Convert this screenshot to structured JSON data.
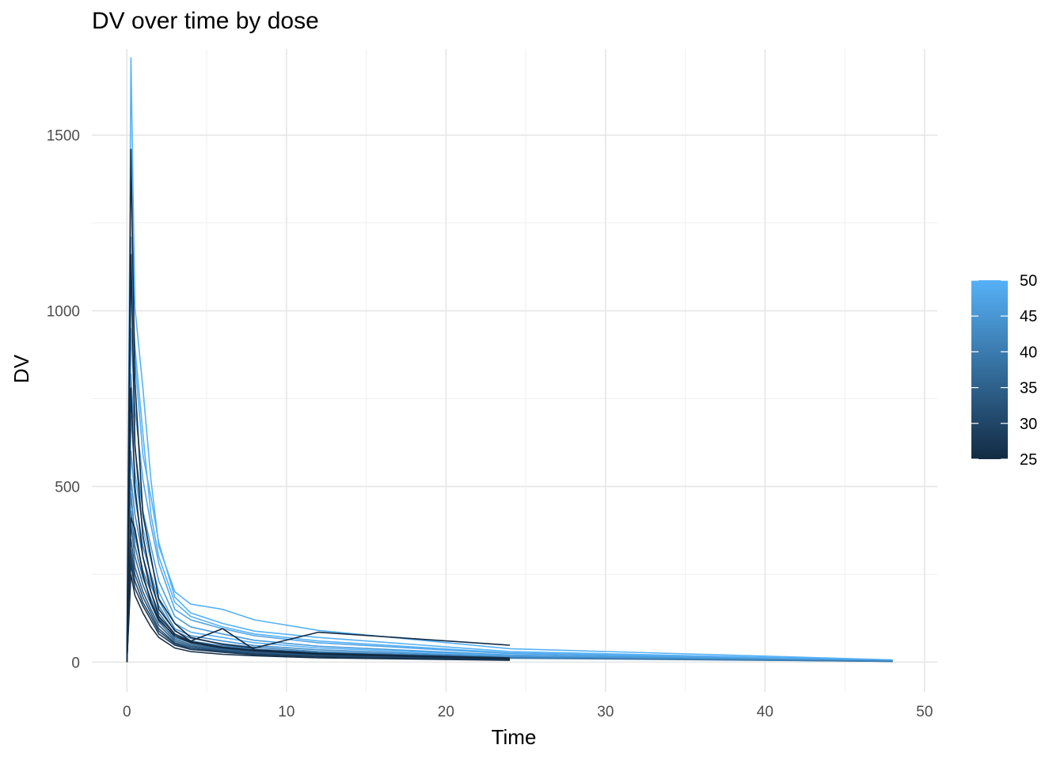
{
  "chart_data": {
    "type": "line",
    "title": "DV over time by dose",
    "xlabel": "Time",
    "ylabel": "DV",
    "xlim": [
      -2.2,
      50.8
    ],
    "ylim": [
      -85,
      1745
    ],
    "x_ticks": [
      0,
      10,
      20,
      30,
      40,
      50
    ],
    "y_ticks": [
      0,
      500,
      1000,
      1500
    ],
    "grid": true,
    "legend": {
      "placement": "right",
      "type": "colorbar",
      "range": [
        25,
        50
      ],
      "ticks": [
        25,
        30,
        35,
        40,
        45,
        50
      ],
      "color_low": "#132B43",
      "color_high": "#56B1F7"
    },
    "series": [
      {
        "dose": 50,
        "x": [
          0,
          0.25,
          0.5,
          1,
          1.5,
          2,
          3,
          4,
          6,
          8,
          12,
          24,
          48
        ],
        "y": [
          0,
          1720,
          1010,
          780,
          520,
          330,
          200,
          165,
          150,
          120,
          90,
          38,
          6
        ]
      },
      {
        "dose": 50,
        "x": [
          0,
          0.25,
          0.5,
          1,
          1.5,
          2,
          3,
          4,
          6,
          8,
          12,
          24,
          48
        ],
        "y": [
          0,
          1210,
          860,
          590,
          470,
          340,
          185,
          140,
          110,
          88,
          70,
          30,
          5
        ]
      },
      {
        "dose": 48,
        "x": [
          0,
          0.25,
          0.5,
          1,
          1.5,
          2,
          3,
          4,
          6,
          8,
          12,
          24,
          48
        ],
        "y": [
          0,
          950,
          720,
          520,
          390,
          280,
          150,
          120,
          95,
          75,
          55,
          24,
          4
        ]
      },
      {
        "dose": 46,
        "x": [
          0,
          0.25,
          0.5,
          1,
          1.5,
          2,
          3,
          4,
          6,
          8,
          12,
          24,
          48
        ],
        "y": [
          0,
          820,
          610,
          430,
          330,
          230,
          130,
          100,
          80,
          62,
          45,
          20,
          3
        ]
      },
      {
        "dose": 50,
        "x": [
          0,
          0.25,
          0.5,
          1,
          1.5,
          2,
          3,
          4,
          6,
          8,
          12,
          24,
          48
        ],
        "y": [
          0,
          700,
          540,
          380,
          290,
          200,
          110,
          85,
          70,
          55,
          40,
          18,
          3
        ]
      },
      {
        "dose": 44,
        "x": [
          0,
          0.25,
          0.5,
          1,
          1.5,
          2,
          3,
          4,
          6,
          8,
          12,
          24,
          48
        ],
        "y": [
          0,
          600,
          470,
          330,
          250,
          175,
          95,
          75,
          60,
          47,
          35,
          15,
          2
        ]
      },
      {
        "dose": 42,
        "x": [
          0,
          0.25,
          0.5,
          1,
          1.5,
          2,
          3,
          4,
          6,
          8,
          12,
          24,
          48
        ],
        "y": [
          0,
          520,
          420,
          300,
          220,
          160,
          88,
          68,
          52,
          42,
          30,
          13,
          2
        ]
      },
      {
        "dose": 40,
        "x": [
          0,
          0.25,
          0.5,
          1,
          1.5,
          2,
          3,
          4,
          6,
          8,
          12,
          24,
          48
        ],
        "y": [
          0,
          480,
          360,
          260,
          200,
          140,
          80,
          60,
          46,
          37,
          27,
          11,
          2
        ]
      },
      {
        "dose": 38,
        "x": [
          0,
          0.25,
          0.5,
          1,
          1.5,
          2,
          3,
          4,
          6,
          8,
          12,
          24
        ],
        "y": [
          0,
          430,
          330,
          240,
          180,
          125,
          70,
          55,
          42,
          33,
          24,
          10
        ]
      },
      {
        "dose": 36,
        "x": [
          0,
          0.25,
          0.5,
          1,
          1.5,
          2,
          3,
          4,
          6,
          8,
          12,
          24
        ],
        "y": [
          0,
          390,
          300,
          220,
          165,
          115,
          65,
          50,
          38,
          30,
          22,
          9
        ]
      },
      {
        "dose": 34,
        "x": [
          0,
          0.25,
          0.5,
          1,
          1.5,
          2,
          3,
          4,
          6,
          8,
          12,
          24
        ],
        "y": [
          0,
          350,
          270,
          200,
          150,
          105,
          60,
          46,
          35,
          28,
          20,
          8
        ]
      },
      {
        "dose": 32,
        "x": [
          0,
          0.25,
          0.5,
          1,
          1.5,
          2,
          3,
          4,
          6,
          8,
          12,
          24
        ],
        "y": [
          0,
          320,
          250,
          185,
          140,
          95,
          55,
          42,
          32,
          25,
          18,
          7
        ]
      },
      {
        "dose": 30,
        "x": [
          0,
          0.25,
          0.5,
          1,
          1.5,
          2,
          3,
          4,
          6,
          8,
          12,
          24
        ],
        "y": [
          0,
          300,
          230,
          170,
          130,
          88,
          52,
          38,
          30,
          23,
          16,
          6
        ]
      },
      {
        "dose": 28,
        "x": [
          0,
          0.25,
          0.5,
          1,
          1.5,
          2,
          3,
          4,
          6,
          8,
          12,
          24
        ],
        "y": [
          0,
          280,
          210,
          160,
          120,
          80,
          48,
          36,
          28,
          21,
          15,
          6
        ]
      },
      {
        "dose": 25,
        "x": [
          0,
          0.25,
          0.5,
          1,
          1.5,
          2,
          3,
          4,
          6,
          8,
          12,
          24
        ],
        "y": [
          0,
          1460,
          800,
          420,
          300,
          180,
          110,
          70,
          50,
          40,
          85,
          48
        ]
      },
      {
        "dose": 25,
        "x": [
          0,
          0.25,
          0.5,
          1,
          1.5,
          2,
          3,
          4,
          6,
          8,
          12,
          24
        ],
        "y": [
          0,
          1160,
          620,
          360,
          240,
          150,
          90,
          60,
          95,
          35,
          25,
          12
        ]
      },
      {
        "dose": 25,
        "x": [
          0,
          0.25,
          0.5,
          1,
          1.5,
          2,
          3,
          4,
          6,
          8,
          12,
          24
        ],
        "y": [
          0,
          410,
          380,
          250,
          170,
          120,
          75,
          55,
          40,
          32,
          22,
          9
        ]
      },
      {
        "dose": 25,
        "x": [
          0,
          0.25,
          0.5,
          1,
          1.5,
          2,
          3,
          4,
          6,
          8,
          12,
          24
        ],
        "y": [
          0,
          780,
          500,
          300,
          200,
          130,
          80,
          58,
          42,
          34,
          24,
          10
        ]
      },
      {
        "dose": 26,
        "x": [
          0,
          0.25,
          0.5,
          1,
          1.5,
          2,
          3,
          4,
          6,
          8,
          12,
          24
        ],
        "y": [
          0,
          250,
          190,
          140,
          100,
          70,
          40,
          30,
          22,
          18,
          12,
          5
        ]
      },
      {
        "dose": 50,
        "x": [
          0,
          0.25,
          0.5,
          1,
          1.5,
          2,
          3,
          4,
          6,
          8,
          12,
          24,
          48
        ],
        "y": [
          0,
          1100,
          900,
          650,
          420,
          300,
          170,
          130,
          100,
          80,
          60,
          26,
          4
        ]
      }
    ]
  }
}
